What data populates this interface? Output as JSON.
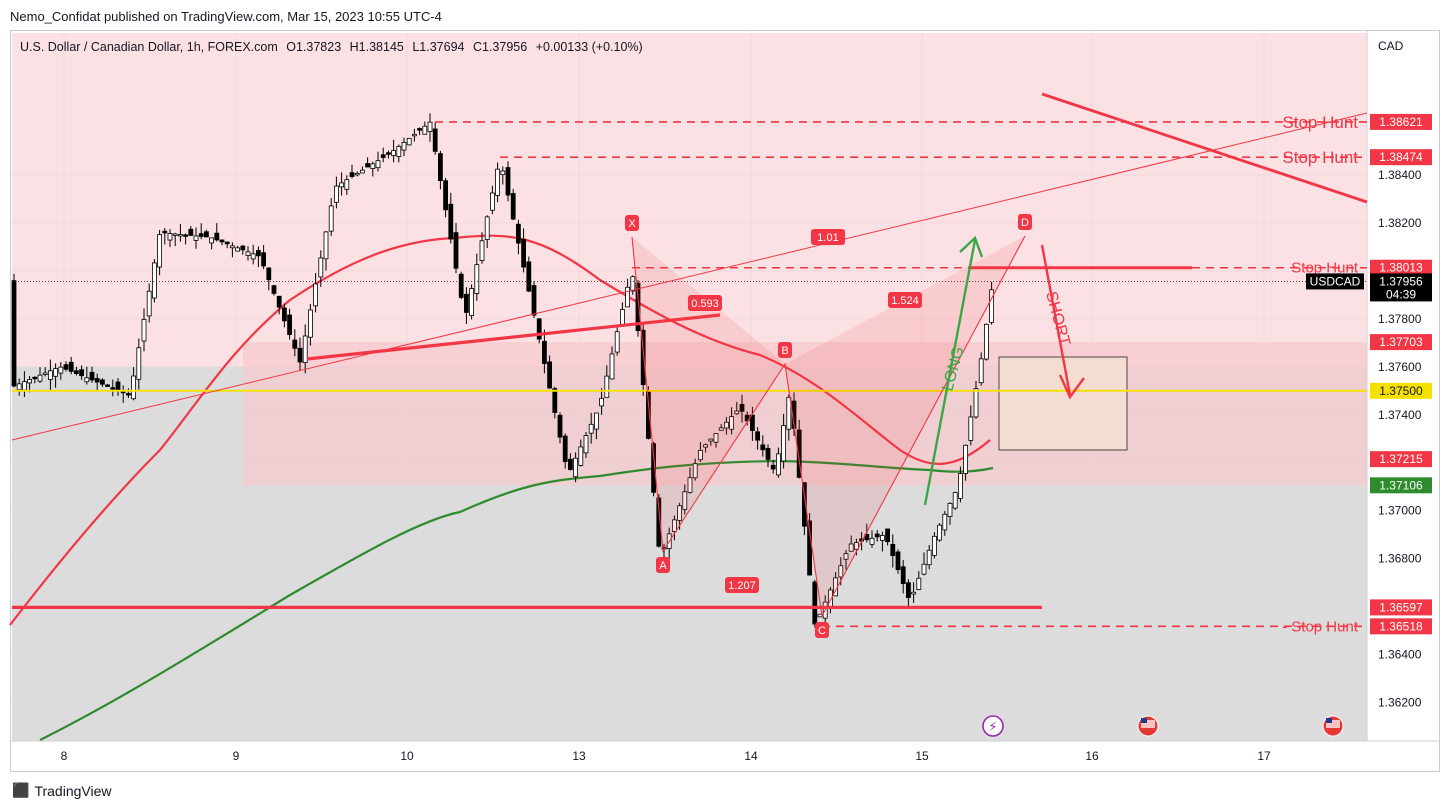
{
  "header": {
    "publisher_line": "Nemo_Confidat published on TradingView.com, Mar 15, 2023 10:55 UTC-4"
  },
  "legend": {
    "symbol": "U.S. Dollar / Canadian Dollar, 1h, FOREX.com",
    "o_label": "O",
    "o_value": "1.37823",
    "h_label": "H",
    "h_value": "1.38145",
    "l_label": "L",
    "l_value": "1.37694",
    "c_label": "C",
    "c_value": "1.37956",
    "change": "+0.00133 (+0.10%)"
  },
  "footer": {
    "brand": "TradingView"
  },
  "colors": {
    "bull": "#ffffff",
    "bear": "#000000",
    "red": "#f23645",
    "green": "#2e8b2e",
    "yellow": "#f5e000",
    "pink_zone": "#f7c9cc",
    "grey_zone": "#d6d6d6",
    "grid": "#e6e6e6"
  },
  "chart_data": {
    "type": "candlestick",
    "currency": "CAD",
    "ylim": [
      1.3604,
      1.39
    ],
    "y_ticks": [
      "1.38400",
      "1.38200",
      "1.37800",
      "1.37600",
      "1.37400",
      "1.37000",
      "1.36800",
      "1.36400",
      "1.36200"
    ],
    "x_ticks": [
      "8",
      "9",
      "10",
      "13",
      "14",
      "15",
      "16",
      "17"
    ],
    "price_labels": [
      {
        "text": "1.38621",
        "kind": "red"
      },
      {
        "text": "1.38474",
        "kind": "red"
      },
      {
        "text": "1.38013",
        "kind": "red"
      },
      {
        "text": "1.37703",
        "kind": "red"
      },
      {
        "text": "1.37500",
        "kind": "yellow"
      },
      {
        "text": "1.37215",
        "kind": "red"
      },
      {
        "text": "1.37106",
        "kind": "green"
      },
      {
        "text": "1.36597",
        "kind": "red"
      },
      {
        "text": "1.36518",
        "kind": "red"
      }
    ],
    "last_price": {
      "symbol": "USDCAD",
      "price": "1.37956",
      "countdown": "04:39"
    },
    "annotations": {
      "stop_hunt_1": "Stop Hunt",
      "stop_hunt_2": "Stop Hunt",
      "stop_hunt_3": "Stop Hunt",
      "stop_hunt_4": "- Stop Hunt",
      "long": "LONG",
      "short": "SHORT",
      "pt_x": "X",
      "pt_a": "A",
      "pt_b": "B",
      "pt_c": "C",
      "pt_d": "D",
      "ratio_xb": "0.593",
      "ratio_ac": "1.207",
      "ratio_bd": "1.524",
      "ratio_xd": "1.01"
    }
  }
}
